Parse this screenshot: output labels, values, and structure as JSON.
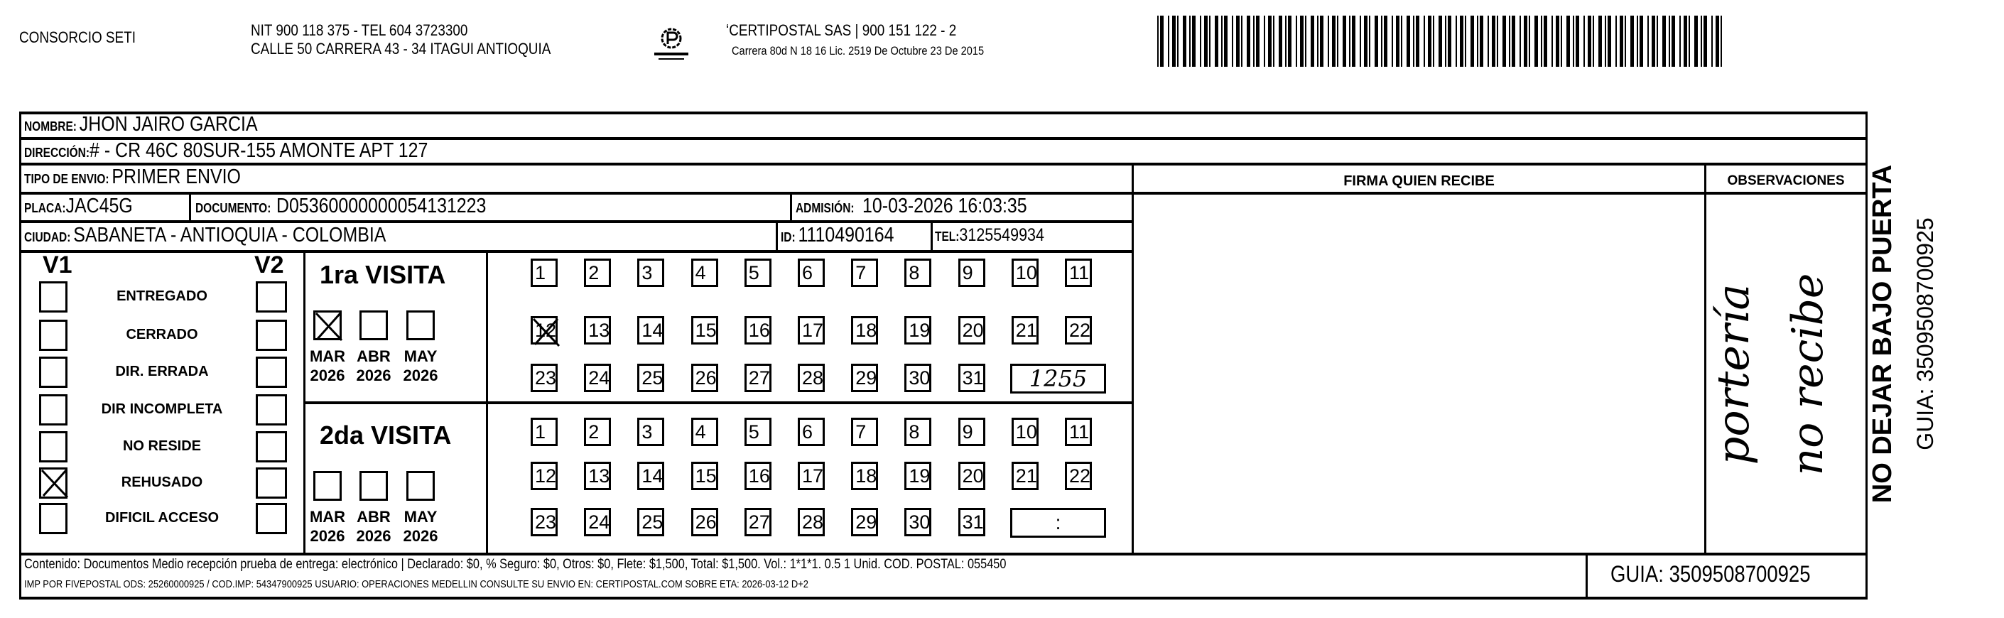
{
  "header": {
    "company": "CONSORCIO SETI",
    "nit_line": "NIT 900 118 375 - TEL 604 3723300",
    "address_line": "CALLE 50 CARRERA 43 - 34 ITAGUI ANTIOQUIA",
    "logo_text": "CERTIPOSTAL",
    "carrier_line": "ʻCERTIPOSTAL SAS | 900 151 122 - 2",
    "license_line": "Carrera 80d N 18 16  Lic. 2519 De Octubre 23 De 2015"
  },
  "recipient": {
    "nombre_label": "NOMBRE:",
    "nombre": "JHON JAIRO GARCIA",
    "direccion_label": "DIRECCIÓN:",
    "direccion": "# - CR 46C 80SUR-155 AMONTE APT 127",
    "tipo_label": "TIPO DE ENVIO:",
    "tipo": "PRIMER ENVIO",
    "placa_label": "PLACA:",
    "placa": "JAC45G",
    "documento_label": "DOCUMENTO:",
    "documento": "D05360000000054131223",
    "admision_label": "ADMISIÓN:",
    "admision": "10-03-2026 16:03:35",
    "ciudad_label": "CIUDAD:",
    "ciudad": "SABANETA - ANTIOQUIA - COLOMBIA",
    "id_label": "ID:",
    "id": "1110490164",
    "tel_label": "TEL:",
    "tel": "3125549934"
  },
  "firma_label": "FIRMA QUIEN RECIBE",
  "observaciones": {
    "label": "OBSERVACIONES",
    "handwritten_line1": "portería",
    "handwritten_line2": "no recibe"
  },
  "status": {
    "v1_label": "V1",
    "v2_label": "V2",
    "items": [
      {
        "label": "ENTREGADO",
        "v1": false,
        "v2": false
      },
      {
        "label": "CERRADO",
        "v1": false,
        "v2": false
      },
      {
        "label": "DIR. ERRADA",
        "v1": false,
        "v2": false
      },
      {
        "label": "DIR INCOMPLETA",
        "v1": false,
        "v2": false
      },
      {
        "label": "NO RESIDE",
        "v1": false,
        "v2": false
      },
      {
        "label": "REHUSADO",
        "v1": true,
        "v2": false
      },
      {
        "label": "DIFICIL ACCESO",
        "v1": false,
        "v2": false
      }
    ]
  },
  "visits": [
    {
      "title": "1ra VISITA",
      "months": [
        {
          "m": "MAR",
          "y": "2026",
          "checked": true
        },
        {
          "m": "ABR",
          "y": "2026",
          "checked": false
        },
        {
          "m": "MAY",
          "y": "2026",
          "checked": false
        }
      ],
      "checked_day": 12,
      "time": "1255"
    },
    {
      "title": "2da VISITA",
      "months": [
        {
          "m": "MAR",
          "y": "2026",
          "checked": false
        },
        {
          "m": "ABR",
          "y": "2026",
          "checked": false
        },
        {
          "m": "MAY",
          "y": "2026",
          "checked": false
        }
      ],
      "checked_day": null,
      "time": ":"
    }
  ],
  "footer": {
    "line1": "Contenido: Documentos Medio recepción prueba de entrega: electrónico | Declarado: $0, % Seguro: $0, Otros: $0, Flete: $1,500, Total: $1,500. Vol.: 1*1*1. 0.5  1 Unid. COD. POSTAL: 055450",
    "line2": "IMP POR FIVEPOSTAL ODS: 25260000925 / COD.IMP: 54347900925 USUARIO: OPERACIONES MEDELLIN CONSULTE SU ENVIO EN: CERTIPOSTAL.COM SOBRE ETA: 2026-03-12 D+2",
    "guia": "GUIA: 3509508700925"
  },
  "side": {
    "warning": "NO DEJAR BAJO PUERTA",
    "guia": "GUIA: 3509508700925"
  }
}
